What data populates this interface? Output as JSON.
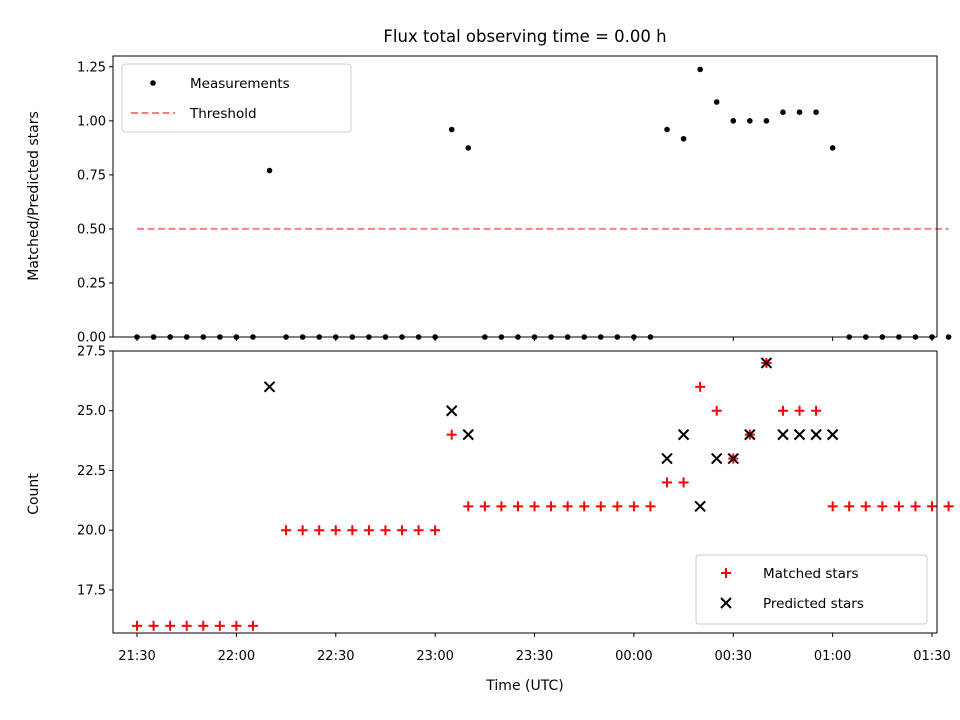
{
  "chart_data": [
    {
      "type": "scatter",
      "title": "Flux total observing time = 0.00 h",
      "xlabel": "",
      "ylabel": "Matched/Predicted stars",
      "ylim": [
        0,
        1.3
      ],
      "yticks": [
        "0.00",
        "0.25",
        "0.50",
        "0.75",
        "1.00",
        "1.25"
      ],
      "legend": {
        "placement": "top-left",
        "entries": [
          "Measurements",
          "Threshold"
        ]
      },
      "series": [
        {
          "name": "Measurements",
          "marker": "dot",
          "color": "#000000",
          "x": [
            "21:30",
            "21:35",
            "21:40",
            "21:45",
            "21:50",
            "21:55",
            "22:00",
            "22:05",
            "22:10",
            "22:15",
            "22:20",
            "22:25",
            "22:30",
            "22:35",
            "22:40",
            "22:45",
            "22:50",
            "22:55",
            "23:00",
            "23:05",
            "23:10",
            "23:15",
            "23:20",
            "23:25",
            "23:30",
            "23:35",
            "23:40",
            "23:45",
            "23:50",
            "23:55",
            "00:00",
            "00:05",
            "00:10",
            "00:15",
            "00:20",
            "00:25",
            "00:30",
            "00:35",
            "00:40",
            "00:45",
            "00:50",
            "00:55",
            "01:00",
            "01:05",
            "01:10",
            "01:15",
            "01:20",
            "01:25",
            "01:30",
            "01:35"
          ],
          "y": [
            0,
            0,
            0,
            0,
            0,
            0,
            0,
            0,
            0.77,
            0,
            0,
            0,
            0,
            0,
            0,
            0,
            0,
            0,
            0,
            0.96,
            0.875,
            0,
            0,
            0,
            0,
            0,
            0,
            0,
            0,
            0,
            0,
            0,
            0.96,
            0.917,
            1.238,
            1.087,
            1.0,
            1.0,
            1.0,
            1.04,
            1.04,
            1.04,
            0.875,
            0,
            0,
            0,
            0,
            0,
            0,
            0
          ]
        },
        {
          "name": "Threshold",
          "marker": "dashed-line",
          "color": "#ff7f7f",
          "x": [
            "21:30",
            "01:35"
          ],
          "y": [
            0.5,
            0.5
          ]
        }
      ]
    },
    {
      "type": "scatter",
      "title": "",
      "xlabel": "Time (UTC)",
      "ylabel": "Count",
      "ylim": [
        15.7,
        27.5
      ],
      "yticks": [
        "17.5",
        "20.0",
        "22.5",
        "25.0",
        "27.5"
      ],
      "xticks": [
        "21:30",
        "22:00",
        "22:30",
        "23:00",
        "23:30",
        "00:00",
        "00:30",
        "01:00",
        "01:30"
      ],
      "legend": {
        "placement": "bottom-right",
        "entries": [
          "Matched stars",
          "Predicted stars"
        ]
      },
      "series": [
        {
          "name": "Matched stars",
          "marker": "plus",
          "color": "#ff0000",
          "x": [
            "21:30",
            "21:35",
            "21:40",
            "21:45",
            "21:50",
            "21:55",
            "22:00",
            "22:05",
            "22:15",
            "22:20",
            "22:25",
            "22:30",
            "22:35",
            "22:40",
            "22:45",
            "22:50",
            "22:55",
            "23:00",
            "23:05",
            "23:10",
            "23:15",
            "23:20",
            "23:25",
            "23:30",
            "23:35",
            "23:40",
            "23:45",
            "23:50",
            "23:55",
            "00:00",
            "00:05",
            "00:10",
            "00:15",
            "00:20",
            "00:25",
            "00:30",
            "00:35",
            "00:40",
            "00:45",
            "00:50",
            "00:55",
            "01:00",
            "01:05",
            "01:10",
            "01:15",
            "01:20",
            "01:25",
            "01:30",
            "01:35"
          ],
          "y": [
            16,
            16,
            16,
            16,
            16,
            16,
            16,
            16,
            20,
            20,
            20,
            20,
            20,
            20,
            20,
            20,
            20,
            20,
            24,
            21,
            21,
            21,
            21,
            21,
            21,
            21,
            21,
            21,
            21,
            21,
            21,
            22,
            22,
            26,
            25,
            23,
            24,
            27,
            25,
            25,
            25,
            21,
            21,
            21,
            21,
            21,
            21,
            21,
            21
          ]
        },
        {
          "name": "Predicted stars",
          "marker": "x",
          "color": "#000000",
          "x": [
            "22:10",
            "23:05",
            "23:10",
            "00:10",
            "00:15",
            "00:20",
            "00:25",
            "00:30",
            "00:35",
            "00:40",
            "00:45",
            "00:50",
            "00:55",
            "01:00"
          ],
          "y": [
            26,
            25,
            24,
            23,
            24,
            21,
            23,
            23,
            24,
            27,
            24,
            24,
            24,
            24
          ]
        }
      ]
    }
  ]
}
